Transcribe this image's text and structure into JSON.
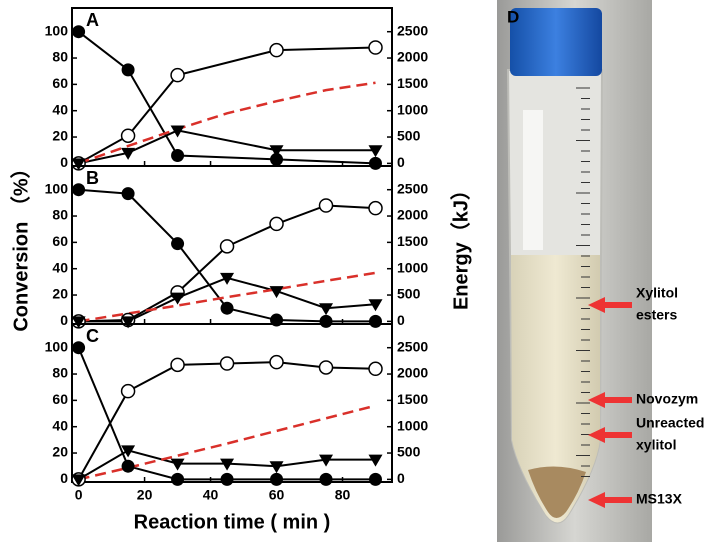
{
  "figure": {
    "xlabel": "Reaction time ( min )",
    "ylabel": "Conversion （%）",
    "y2label": "Energy（kJ）"
  },
  "chart_data": [
    {
      "type": "line",
      "title": "A",
      "xlim": [
        -2,
        95
      ],
      "ylim": [
        -2,
        118
      ],
      "yticks": [
        0,
        20,
        40,
        60,
        80,
        100
      ],
      "y2lim": [
        -50,
        2950
      ],
      "y2ticks": [
        0,
        500,
        1000,
        1500,
        2000,
        2500
      ],
      "series": [
        {
          "marker": "filled-circle",
          "color": "#000000",
          "x": [
            0,
            15,
            30,
            60,
            90
          ],
          "values": [
            100,
            71,
            6,
            3,
            0
          ]
        },
        {
          "marker": "open-circle",
          "color": "#000000",
          "x": [
            0,
            15,
            30,
            60,
            90
          ],
          "values": [
            0,
            21,
            67,
            86,
            88
          ]
        },
        {
          "marker": "triangle-down",
          "color": "#000000",
          "x": [
            0,
            15,
            30,
            60,
            90
          ],
          "values": [
            0,
            8,
            25,
            10,
            10
          ]
        },
        {
          "marker": "none",
          "style": "dashed",
          "color": "#d9302a",
          "axis": "y2",
          "x": [
            0,
            15,
            30,
            45,
            60,
            75,
            90
          ],
          "values": [
            0,
            330,
            650,
            950,
            1180,
            1390,
            1530
          ]
        }
      ]
    },
    {
      "type": "line",
      "title": "B",
      "xlim": [
        -2,
        95
      ],
      "ylim": [
        -2,
        118
      ],
      "yticks": [
        0,
        20,
        40,
        60,
        80,
        100
      ],
      "y2lim": [
        -50,
        2950
      ],
      "y2ticks": [
        0,
        500,
        1000,
        1500,
        2000,
        2500
      ],
      "series": [
        {
          "marker": "filled-circle",
          "color": "#000000",
          "x": [
            0,
            15,
            30,
            45,
            60,
            75,
            90
          ],
          "values": [
            100,
            97,
            59,
            10,
            1,
            0,
            0
          ]
        },
        {
          "marker": "open-circle",
          "color": "#000000",
          "x": [
            0,
            15,
            30,
            45,
            60,
            75,
            90
          ],
          "values": [
            0,
            1,
            22,
            57,
            74,
            88,
            86
          ]
        },
        {
          "marker": "triangle-down",
          "color": "#000000",
          "x": [
            0,
            15,
            30,
            45,
            60,
            75,
            90
          ],
          "values": [
            0,
            0,
            18,
            33,
            23,
            10,
            13
          ]
        },
        {
          "marker": "none",
          "style": "dashed",
          "color": "#d9302a",
          "axis": "y2",
          "x": [
            0,
            15,
            30,
            45,
            60,
            75,
            90
          ],
          "values": [
            0,
            150,
            300,
            460,
            610,
            770,
            920
          ]
        }
      ]
    },
    {
      "type": "line",
      "title": "C",
      "xlim": [
        -2,
        95
      ],
      "ylim": [
        -2,
        118
      ],
      "yticks": [
        0,
        20,
        40,
        60,
        80,
        100
      ],
      "y2lim": [
        -50,
        2950
      ],
      "y2ticks": [
        0,
        500,
        1000,
        1500,
        2000,
        2500
      ],
      "xticks": [
        0,
        20,
        40,
        60,
        80
      ],
      "series": [
        {
          "marker": "filled-circle",
          "color": "#000000",
          "x": [
            0,
            15,
            30,
            45,
            60,
            75,
            90
          ],
          "values": [
            100,
            10,
            0,
            0,
            0,
            0,
            0
          ]
        },
        {
          "marker": "open-circle",
          "color": "#000000",
          "x": [
            0,
            15,
            30,
            45,
            60,
            75,
            90
          ],
          "values": [
            0,
            67,
            87,
            88,
            89,
            85,
            84
          ]
        },
        {
          "marker": "triangle-down",
          "color": "#000000",
          "x": [
            0,
            15,
            30,
            45,
            60,
            75,
            90
          ],
          "values": [
            0,
            22,
            12,
            12,
            10,
            15,
            15
          ]
        },
        {
          "marker": "none",
          "style": "dashed",
          "color": "#d9302a",
          "axis": "y2",
          "x": [
            0,
            15,
            30,
            45,
            60,
            75,
            90
          ],
          "values": [
            0,
            220,
            450,
            680,
            920,
            1160,
            1400
          ]
        }
      ]
    }
  ],
  "photo": {
    "label": "D",
    "annotations": [
      {
        "lines": [
          "Xylitol",
          "esters"
        ]
      },
      {
        "lines": [
          "Novozym"
        ]
      },
      {
        "lines": [
          "Unreacted",
          "xylitol"
        ]
      },
      {
        "lines": [
          "MS13X"
        ]
      }
    ]
  }
}
